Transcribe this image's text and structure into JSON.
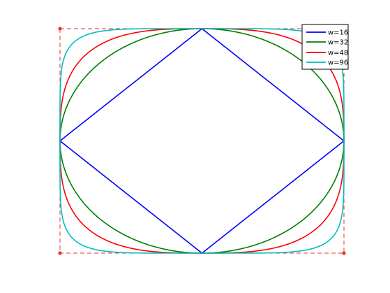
{
  "chart_data": {
    "type": "line",
    "title": "",
    "xlabel": "",
    "ylabel": "",
    "xlim": [
      -1,
      1
    ],
    "ylim": [
      -1,
      1
    ],
    "grid": false,
    "legend": {
      "placement": "top-right",
      "entries": [
        "w=16",
        "w=32",
        "w=48",
        "w=96"
      ]
    },
    "bounding_square": {
      "color": "#e8352e",
      "style": "dashed",
      "corners": [
        [
          -1,
          1
        ],
        [
          1,
          1
        ],
        [
          1,
          -1
        ],
        [
          -1,
          -1
        ]
      ]
    },
    "series": [
      {
        "name": "w=16",
        "color": "#0000ff",
        "exponent": 1
      },
      {
        "name": "w=32",
        "color": "#008000",
        "exponent": 2
      },
      {
        "name": "w=48",
        "color": "#ff0000",
        "exponent": 3
      },
      {
        "name": "w=96",
        "color": "#00bfbf",
        "exponent": 6
      }
    ]
  }
}
